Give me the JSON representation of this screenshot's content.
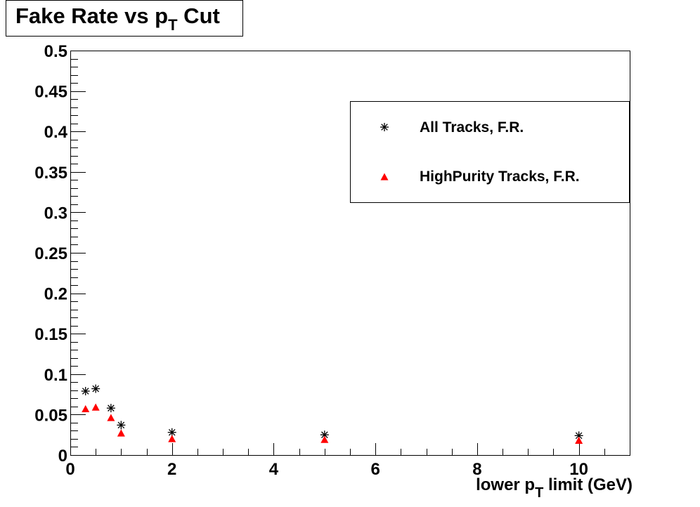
{
  "chart_data": {
    "type": "scatter",
    "title": "Fake Rate vs p_T Cut",
    "title_parts": {
      "before": "Fake Rate vs p",
      "sub": "T",
      "after": " Cut"
    },
    "xlabel": "lower p_T limit (GeV)",
    "xlabel_parts": {
      "before": "lower p",
      "sub": "T",
      "after": " limit (GeV)"
    },
    "ylabel": "",
    "xlim": [
      0,
      11
    ],
    "ylim": [
      0,
      0.5
    ],
    "x_ticks": [
      0,
      2,
      4,
      6,
      8,
      10
    ],
    "y_ticks": [
      0,
      0.05,
      0.1,
      0.15,
      0.2,
      0.25,
      0.3,
      0.35,
      0.4,
      0.45,
      0.5
    ],
    "y_tick_labels": [
      "0",
      "0.05",
      "0.1",
      "0.15",
      "0.2",
      "0.25",
      "0.3",
      "0.35",
      "0.4",
      "0.45",
      "0.5"
    ],
    "legend_position": "top-right",
    "grid": false,
    "series": [
      {
        "name": "All Tracks, F.R.",
        "marker": "asterisk",
        "color": "#000000",
        "x": [
          0.3,
          0.5,
          0.8,
          1.0,
          2.0,
          5.0,
          10.0
        ],
        "y": [
          0.079,
          0.082,
          0.058,
          0.037,
          0.028,
          0.025,
          0.024
        ]
      },
      {
        "name": "HighPurity Tracks, F.R.",
        "marker": "triangle",
        "color": "#ff0000",
        "x": [
          0.3,
          0.5,
          0.8,
          1.0,
          2.0,
          5.0,
          10.0
        ],
        "y": [
          0.057,
          0.059,
          0.046,
          0.027,
          0.02,
          0.019,
          0.018
        ]
      }
    ]
  }
}
